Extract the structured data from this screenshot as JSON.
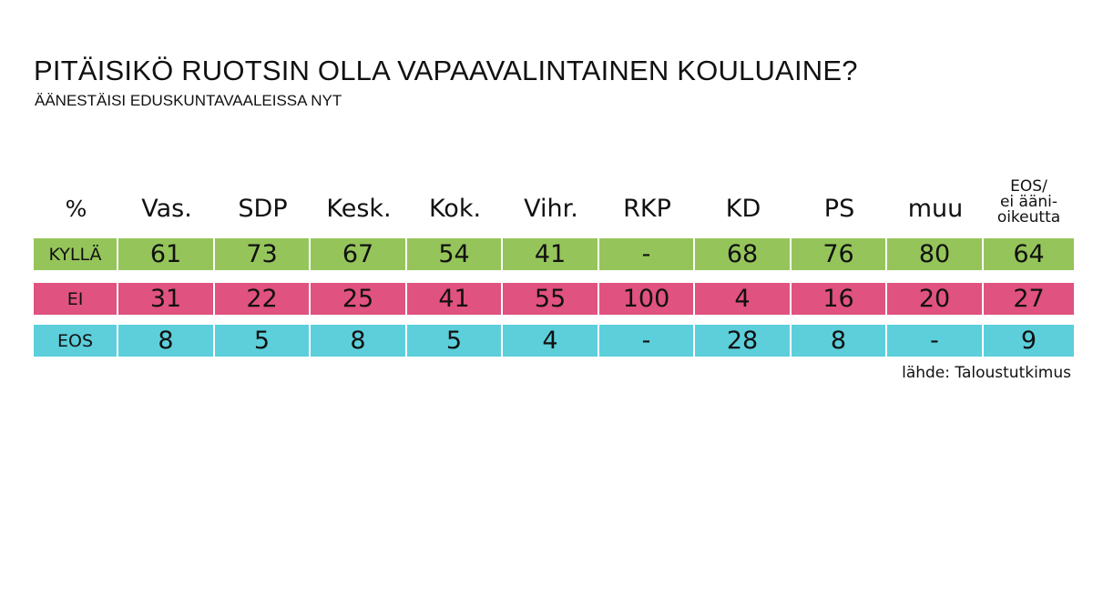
{
  "title": "PITÄISIKÖ RUOTSIN OLLA VAPAAVALINTAINEN KOULUAINE?",
  "subtitle": "ÄÄNESTÄISI EDUSKUNTAVAALEISSA NYT",
  "source": "lähde: Taloustutkimus",
  "colors": {
    "kylla": "#95c55a",
    "ei": "#e0527f",
    "eos": "#5ccfdb"
  },
  "chart_data": {
    "type": "table",
    "corner_label": "%",
    "columns": [
      "Vas.",
      "SDP",
      "Kesk.",
      "Kok.",
      "Vihr.",
      "RKP",
      "KD",
      "PS",
      "muu",
      "EOS/\nei ääni-\noikeutta"
    ],
    "rows": [
      {
        "label": "KYLLÄ",
        "color": "#95c55a",
        "values": [
          "61",
          "73",
          "67",
          "54",
          "41",
          "-",
          "68",
          "76",
          "80",
          "64"
        ]
      },
      {
        "label": "EI",
        "color": "#e0527f",
        "values": [
          "31",
          "22",
          "25",
          "41",
          "55",
          "100",
          "4",
          "16",
          "20",
          "27"
        ]
      },
      {
        "label": "EOS",
        "color": "#5ccfdb",
        "values": [
          "8",
          "5",
          "8",
          "5",
          "4",
          "-",
          "28",
          "8",
          "-",
          "9"
        ]
      }
    ]
  }
}
